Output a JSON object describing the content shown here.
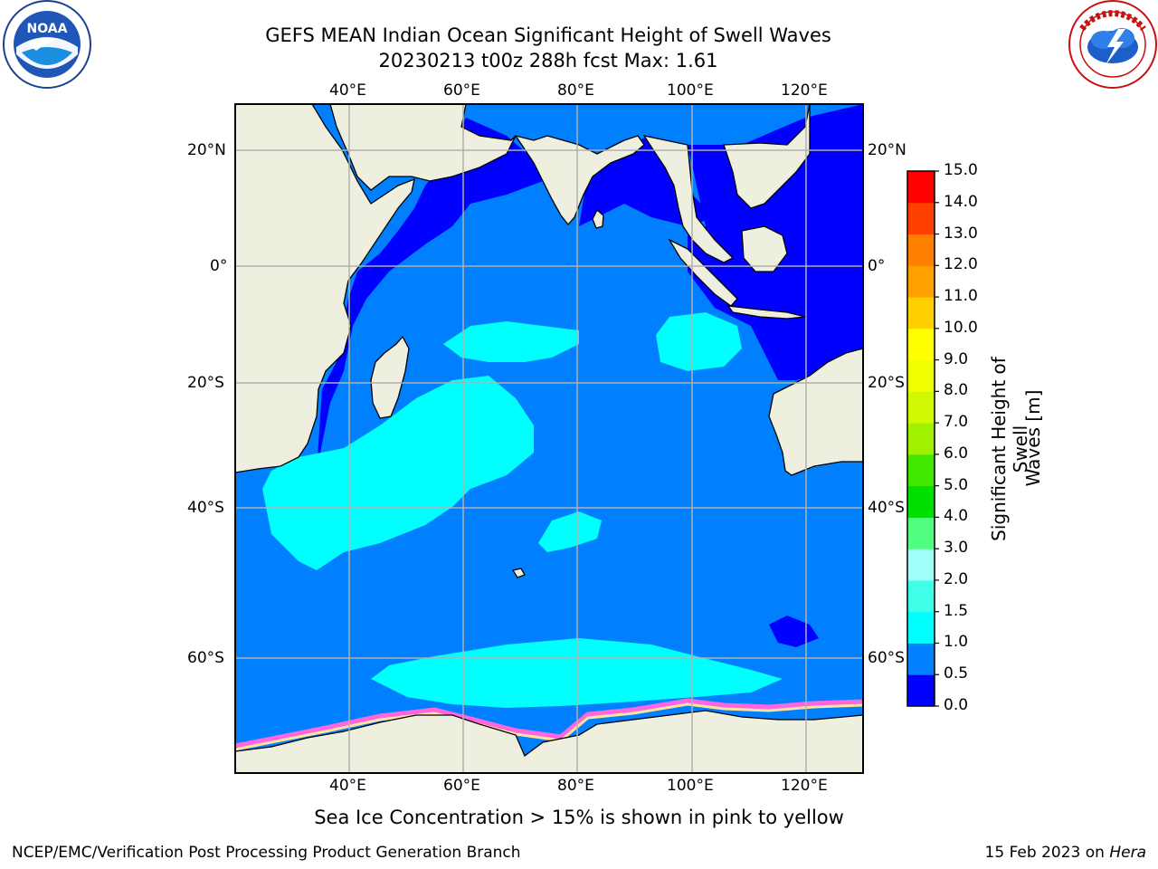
{
  "header": {
    "title_line1": "GEFS MEAN Indian Ocean Significant Height of Swell Waves",
    "title_line2": "20230213 t00z 288h fcst   Max: 1.61"
  },
  "logos": {
    "left": {
      "name": "noaa-logo",
      "text": "NOAA",
      "ring_text": "NATIONAL OCEANIC AND ATMOSPHERIC ADMINISTRATION · U.S. DEPARTMENT OF COMMERCE"
    },
    "right": {
      "name": "nws-logo",
      "ring_text": "NATIONAL WEATHER SERVICE"
    }
  },
  "map": {
    "lon_labels": [
      "40°E",
      "60°E",
      "80°E",
      "100°E",
      "120°E"
    ],
    "lat_labels": [
      "20°N",
      "0°",
      "20°S",
      "40°S",
      "60°S"
    ],
    "lon_values": [
      40,
      60,
      80,
      100,
      120
    ],
    "lat_values": [
      20,
      0,
      -20,
      -40,
      -60
    ],
    "lon_range": [
      20,
      130
    ],
    "lat_range": [
      -75,
      27
    ],
    "colors": {
      "land": "#efefdf",
      "deep_blue": "#0000ff",
      "mid_blue": "#0080ff",
      "cyan": "#00ffff",
      "grid": "#b0b0b0"
    }
  },
  "colorbar": {
    "label": "Significant Height of Swell Waves [m]",
    "label_line1": "Significant Height of Swell",
    "label_line2": "Waves [m]",
    "ticks": [
      "0.0",
      "0.5",
      "1.0",
      "1.5",
      "2.0",
      "3.0",
      "4.0",
      "5.0",
      "6.0",
      "7.0",
      "8.0",
      "9.0",
      "10.0",
      "11.0",
      "12.0",
      "13.0",
      "14.0",
      "15.0"
    ],
    "colors": [
      "#0000ff",
      "#0080ff",
      "#00ffff",
      "#40ffe8",
      "#a0fff8",
      "#50ff80",
      "#00e000",
      "#40e800",
      "#a0f000",
      "#d0f800",
      "#f0ff00",
      "#ffff00",
      "#ffd000",
      "#ffa000",
      "#ff8000",
      "#ff4000",
      "#ff0000"
    ]
  },
  "caption": "Sea Ice Concentration > 15% is shown in pink to yellow",
  "footer": {
    "left": "NCEP/EMC/Verification Post Processing Product Generation Branch",
    "right_prefix": "15 Feb 2023 on ",
    "right_host": "Hera"
  }
}
